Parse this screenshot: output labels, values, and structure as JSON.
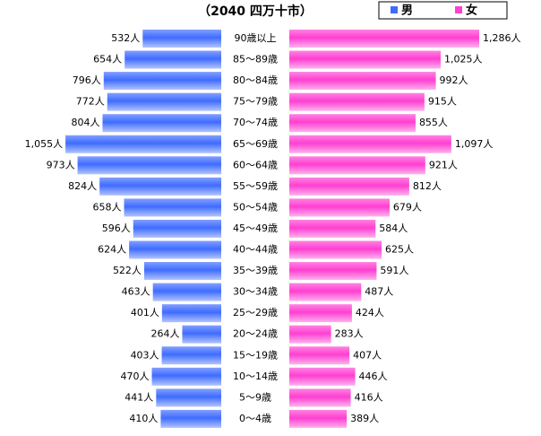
{
  "chart_data": {
    "type": "pyramid",
    "title": "（2040 四万十市）",
    "categories": [
      "90歳以上",
      "85～89歳",
      "80～84歳",
      "75～79歳",
      "70～74歳",
      "65～69歳",
      "60～64歳",
      "55～59歳",
      "50～54歳",
      "45～49歳",
      "40～44歳",
      "35～39歳",
      "30～34歳",
      "25～29歳",
      "20～24歳",
      "15～19歳",
      "10～14歳",
      "5～9歳",
      "0～4歳"
    ],
    "series": [
      {
        "name": "男",
        "color": "#3f6cff",
        "values": [
          532,
          654,
          796,
          772,
          804,
          1055,
          973,
          824,
          658,
          596,
          624,
          522,
          463,
          401,
          264,
          403,
          470,
          441,
          410
        ],
        "value_labels": [
          "532人",
          "654人",
          "796人",
          "772人",
          "804人",
          "1,055人",
          "973人",
          "824人",
          "658人",
          "596人",
          "624人",
          "522人",
          "463人",
          "401人",
          "264人",
          "403人",
          "470人",
          "441人",
          "410人"
        ]
      },
      {
        "name": "女",
        "color": "#ff3fd2",
        "values": [
          1286,
          1025,
          992,
          915,
          855,
          1097,
          921,
          812,
          679,
          584,
          625,
          591,
          487,
          424,
          283,
          407,
          446,
          416,
          389
        ],
        "value_labels": [
          "1,286人",
          "1,025人",
          "992人",
          "915人",
          "855人",
          "1,097人",
          "921人",
          "812人",
          "679人",
          "584人",
          "625人",
          "591人",
          "487人",
          "424人",
          "283人",
          "407人",
          "446人",
          "416人",
          "389人"
        ]
      }
    ]
  }
}
